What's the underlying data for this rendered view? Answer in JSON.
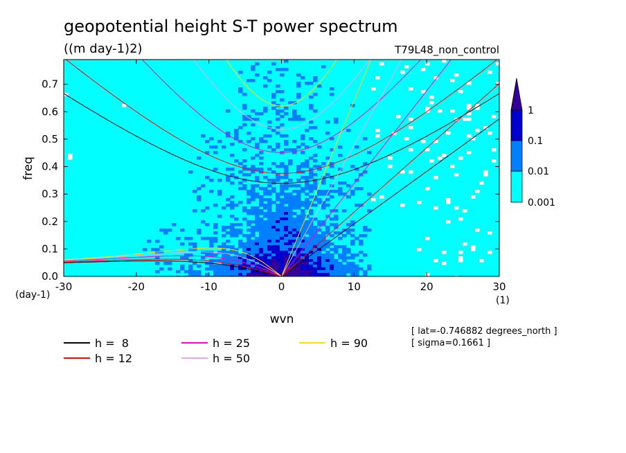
{
  "chart_data": {
    "type": "heatmap",
    "title": "geopotential height S-T power spectrum",
    "subtitle": "((m day-1)2)",
    "run_label": "T79L48_non_control",
    "xlabel": "wvn",
    "ylabel": "freq",
    "x_unit": "(1)",
    "y_unit": "(day-1)",
    "xlim": [
      -30,
      30
    ],
    "ylim": [
      0,
      0.79
    ],
    "xticks": [
      "-30",
      "-20",
      "-10",
      "0",
      "10",
      "20",
      "30"
    ],
    "xtick_values": [
      -30,
      -20,
      -10,
      0,
      10,
      20,
      30
    ],
    "yticks": [
      "0.0",
      "0.1",
      "0.2",
      "0.3",
      "0.4",
      "0.5",
      "0.6",
      "0.7"
    ],
    "ytick_values": [
      0,
      0.1,
      0.2,
      0.3,
      0.4,
      0.5,
      0.6,
      0.7
    ],
    "colorbar": {
      "levels": [
        "0.001",
        "0.01",
        "0.1",
        "1"
      ],
      "colors": [
        "#00ffff",
        "#0080ff",
        "#0000cc",
        "#330099"
      ],
      "extend": "max"
    },
    "equivalent_depth_curves": {
      "series": [
        {
          "name": "h =  8",
          "h": 8,
          "color": "#000000"
        },
        {
          "name": "h = 12",
          "h": 12,
          "color": "#ff0000"
        },
        {
          "name": "h = 25",
          "h": 25,
          "color": "#ff00cc"
        },
        {
          "name": "h = 50",
          "h": 50,
          "color": "#e8a8e8"
        },
        {
          "name": "h = 90",
          "h": 90,
          "color": "#ffe000"
        }
      ]
    },
    "annotations": [
      "[ lat=-0.746882 degrees_north ]",
      "[ sigma=0.1661 ]"
    ]
  }
}
